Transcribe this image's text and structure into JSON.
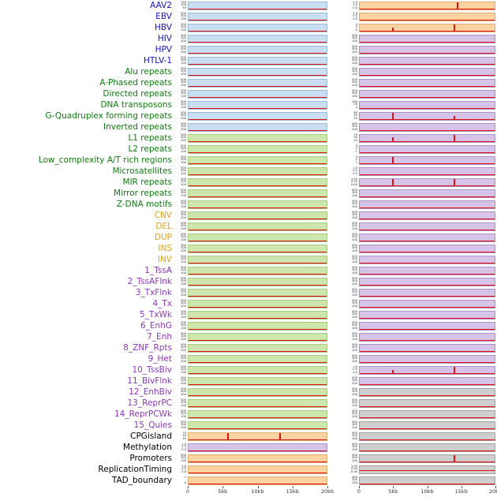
{
  "axis": {
    "ticks": [
      "0",
      "5kb",
      "10kb",
      "15kb",
      "20kb"
    ]
  },
  "colors": {
    "label": {
      "virus": "#1212c4",
      "repeat": "#0e7d0e",
      "sv": "#e5a117",
      "state": "#8f35bf",
      "other": "#000000"
    },
    "track": {
      "blue": {
        "fill": "#c9def0",
        "edge": "#9bbdd8"
      },
      "green": {
        "fill": "#cde6ad",
        "edge": "#a8cc80"
      },
      "orange": {
        "fill": "#fcd2a1",
        "edge": "#e2ae6e"
      },
      "purple": {
        "fill": "#d5c4e8",
        "edge": "#ab92cc"
      },
      "gray": {
        "fill": "#cecece",
        "edge": "#a2a2a2"
      }
    },
    "signal": "#e31010"
  },
  "chart_data": {
    "type": "area",
    "x_axis": {
      "ticks": [
        "0",
        "5kb",
        "10kb",
        "15kb",
        "20kb"
      ],
      "range_kb": [
        0,
        20
      ]
    },
    "panels": [
      "left",
      "right"
    ],
    "notable_peaks": [
      {
        "row": "AAV2",
        "panel": "right",
        "peaks_kb": [
          14.5
        ]
      },
      {
        "row": "HBV",
        "panel": "right",
        "peaks_kb": [
          5,
          14
        ]
      },
      {
        "row": "G-Quadruplex forming repeats",
        "panel": "right",
        "peaks_kb": [
          5,
          14
        ]
      },
      {
        "row": "L1 repeats",
        "panel": "right",
        "peaks_kb": [
          5,
          14
        ]
      },
      {
        "row": "Low_complexity A/T rich regions",
        "panel": "right",
        "peaks_kb": [
          5
        ]
      },
      {
        "row": "MIR repeats",
        "panel": "right",
        "peaks_kb": [
          5,
          14
        ]
      },
      {
        "row": "10_TssBiv",
        "panel": "right",
        "peaks_kb": [
          5,
          14
        ]
      },
      {
        "row": "CPGisland",
        "panel": "left",
        "peaks_kb": [
          6,
          14.7
        ]
      },
      {
        "row": "Promoters",
        "panel": "right",
        "peaks_kb": [
          14
        ]
      }
    ]
  },
  "rows": [
    {
      "label": "AAV2",
      "group": "virus",
      "left": {
        "bg": "blue",
        "ticks": [
          "150",
          "100",
          "50"
        ],
        "spikes": []
      },
      "right": {
        "bg": "orange",
        "ticks": [
          "2.0",
          "1.0",
          "0.0"
        ],
        "spikes": [
          [
            0.72,
            0.92
          ]
        ]
      }
    },
    {
      "label": "EBV",
      "group": "virus",
      "left": {
        "bg": "blue",
        "ticks": [
          "500",
          "300",
          "100"
        ],
        "spikes": []
      },
      "right": {
        "bg": "orange",
        "ticks": [
          "1.0",
          "0.5",
          "0.0"
        ],
        "spikes": []
      }
    },
    {
      "label": "HBV",
      "group": "virus",
      "left": {
        "bg": "blue",
        "ticks": [
          "500",
          "300",
          "100"
        ],
        "spikes": []
      },
      "right": {
        "bg": "orange",
        "ticks": [
          "4",
          "2",
          "0"
        ],
        "spikes": [
          [
            0.25,
            0.5
          ],
          [
            0.7,
            0.95
          ]
        ]
      }
    },
    {
      "label": "HIV",
      "group": "virus",
      "left": {
        "bg": "blue",
        "ticks": [
          "500",
          "300",
          "100"
        ],
        "spikes": []
      },
      "right": {
        "bg": "purple",
        "ticks": [
          "500",
          "300",
          "100"
        ],
        "spikes": []
      }
    },
    {
      "label": "HPV",
      "group": "virus",
      "left": {
        "bg": "blue",
        "ticks": [
          "500",
          "300",
          "100"
        ],
        "spikes": []
      },
      "right": {
        "bg": "purple",
        "ticks": [
          "500",
          "300",
          "100"
        ],
        "spikes": []
      }
    },
    {
      "label": "HTLV-1",
      "group": "virus",
      "left": {
        "bg": "blue",
        "ticks": [
          "500",
          "300",
          "100"
        ],
        "spikes": []
      },
      "right": {
        "bg": "purple",
        "ticks": [
          "500",
          "300",
          "100"
        ],
        "spikes": []
      }
    },
    {
      "label": "Alu repeats",
      "group": "repeat",
      "left": {
        "bg": "blue",
        "ticks": [
          "500",
          "300",
          "100"
        ],
        "spikes": []
      },
      "right": {
        "bg": "purple",
        "ticks": [
          "500",
          "300",
          "100"
        ],
        "spikes": []
      }
    },
    {
      "label": "A-Phased repeats",
      "group": "repeat",
      "left": {
        "bg": "blue",
        "ticks": [
          "500",
          "300",
          "100"
        ],
        "spikes": []
      },
      "right": {
        "bg": "purple",
        "ticks": [
          "500",
          "300",
          "100"
        ],
        "spikes": []
      }
    },
    {
      "label": "Directed repeats",
      "group": "repeat",
      "left": {
        "bg": "blue",
        "ticks": [
          "500",
          "300",
          "100"
        ],
        "spikes": []
      },
      "right": {
        "bg": "purple",
        "ticks": [
          "500",
          "300",
          "100"
        ],
        "spikes": []
      }
    },
    {
      "label": "DNA transposons",
      "group": "repeat",
      "left": {
        "bg": "blue",
        "ticks": [
          "500",
          "300",
          "100"
        ],
        "spikes": []
      },
      "right": {
        "bg": "purple",
        "ticks": [
          "100",
          "50",
          "0"
        ],
        "spikes": []
      }
    },
    {
      "label": "G-Quadruplex forming repeats",
      "group": "repeat",
      "left": {
        "bg": "blue",
        "ticks": [
          "500",
          "300",
          "100"
        ],
        "spikes": []
      },
      "right": {
        "bg": "purple",
        "ticks": [
          "60",
          "40",
          "20"
        ],
        "spikes": [
          [
            0.25,
            0.95
          ],
          [
            0.7,
            0.5
          ]
        ]
      }
    },
    {
      "label": "Inverted repeats",
      "group": "repeat",
      "left": {
        "bg": "blue",
        "ticks": [
          "500",
          "300",
          "100"
        ],
        "spikes": []
      },
      "right": {
        "bg": "purple",
        "ticks": [
          "500",
          "300",
          "100"
        ],
        "spikes": []
      }
    },
    {
      "label": "L1 repeats",
      "group": "repeat",
      "left": {
        "bg": "green",
        "ticks": [
          "500",
          "300",
          "100"
        ],
        "spikes": []
      },
      "right": {
        "bg": "purple",
        "ticks": [
          "75",
          "50",
          "25"
        ],
        "spikes": [
          [
            0.25,
            0.6
          ],
          [
            0.7,
            0.95
          ]
        ]
      }
    },
    {
      "label": "L2 repeats",
      "group": "repeat",
      "left": {
        "bg": "green",
        "ticks": [
          "500",
          "300",
          "100"
        ],
        "spikes": []
      },
      "right": {
        "bg": "purple",
        "ticks": [
          "3",
          "2",
          "1"
        ],
        "spikes": []
      }
    },
    {
      "label": "Low_complexity A/T rich regions",
      "group": "repeat",
      "left": {
        "bg": "green",
        "ticks": [
          "500",
          "300",
          "100"
        ],
        "spikes": []
      },
      "right": {
        "bg": "purple",
        "ticks": [
          "3",
          "2",
          "1"
        ],
        "spikes": [
          [
            0.25,
            0.9
          ]
        ]
      }
    },
    {
      "label": "Microsatellites",
      "group": "repeat",
      "left": {
        "bg": "green",
        "ticks": [
          "500",
          "300",
          "100"
        ],
        "spikes": []
      },
      "right": {
        "bg": "purple",
        "ticks": [
          "1.0",
          "0.5",
          "0.0"
        ],
        "spikes": []
      }
    },
    {
      "label": "MIR repeats",
      "group": "repeat",
      "left": {
        "bg": "green",
        "ticks": [
          "500",
          "300",
          "100"
        ],
        "spikes": []
      },
      "right": {
        "bg": "purple",
        "ticks": [
          "1.00",
          "0.50",
          "0.00"
        ],
        "spikes": [
          [
            0.25,
            0.85
          ],
          [
            0.7,
            0.85
          ]
        ]
      }
    },
    {
      "label": "Mirror repeats",
      "group": "repeat",
      "left": {
        "bg": "green",
        "ticks": [
          "500",
          "300",
          "100"
        ],
        "spikes": []
      },
      "right": {
        "bg": "purple",
        "ticks": [
          "500",
          "300",
          "100"
        ],
        "spikes": []
      }
    },
    {
      "label": "Z-DNA motifs",
      "group": "repeat",
      "left": {
        "bg": "green",
        "ticks": [
          "500",
          "300",
          "100"
        ],
        "spikes": []
      },
      "right": {
        "bg": "purple",
        "ticks": [
          "500",
          "300",
          "100"
        ],
        "spikes": []
      }
    },
    {
      "label": "CNV",
      "group": "sv",
      "left": {
        "bg": "green",
        "ticks": [
          "500",
          "300",
          "100"
        ],
        "spikes": []
      },
      "right": {
        "bg": "purple",
        "ticks": [
          "500",
          "300",
          "100"
        ],
        "spikes": []
      }
    },
    {
      "label": "DEL",
      "group": "sv",
      "left": {
        "bg": "green",
        "ticks": [
          "500",
          "300",
          "100"
        ],
        "spikes": []
      },
      "right": {
        "bg": "purple",
        "ticks": [
          "500",
          "300",
          "100"
        ],
        "spikes": []
      }
    },
    {
      "label": "DUP",
      "group": "sv",
      "left": {
        "bg": "green",
        "ticks": [
          "500",
          "300",
          "100"
        ],
        "spikes": []
      },
      "right": {
        "bg": "purple",
        "ticks": [
          "500",
          "300",
          "100"
        ],
        "spikes": []
      }
    },
    {
      "label": "INS",
      "group": "sv",
      "left": {
        "bg": "green",
        "ticks": [
          "500",
          "300",
          "100"
        ],
        "spikes": []
      },
      "right": {
        "bg": "purple",
        "ticks": [
          "500",
          "300",
          "100"
        ],
        "spikes": []
      }
    },
    {
      "label": "INV",
      "group": "sv",
      "left": {
        "bg": "green",
        "ticks": [
          "500",
          "300",
          "100"
        ],
        "spikes": []
      },
      "right": {
        "bg": "purple",
        "ticks": [
          "500",
          "300",
          "100"
        ],
        "spikes": []
      }
    },
    {
      "label": "1_TssA",
      "group": "state",
      "left": {
        "bg": "green",
        "ticks": [
          "500",
          "300",
          "100"
        ],
        "spikes": []
      },
      "right": {
        "bg": "purple",
        "ticks": [
          "500",
          "300",
          "100"
        ],
        "spikes": []
      }
    },
    {
      "label": "2_TssAFlnk",
      "group": "state",
      "left": {
        "bg": "green",
        "ticks": [
          "500",
          "300",
          "100"
        ],
        "spikes": []
      },
      "right": {
        "bg": "purple",
        "ticks": [
          "500",
          "300",
          "100"
        ],
        "spikes": []
      }
    },
    {
      "label": "3_TxFlnk",
      "group": "state",
      "left": {
        "bg": "green",
        "ticks": [
          "500",
          "300",
          "100"
        ],
        "spikes": []
      },
      "right": {
        "bg": "purple",
        "ticks": [
          "500",
          "300",
          "100"
        ],
        "spikes": []
      }
    },
    {
      "label": "4_Tx",
      "group": "state",
      "left": {
        "bg": "green",
        "ticks": [
          "500",
          "300",
          "100"
        ],
        "spikes": []
      },
      "right": {
        "bg": "purple",
        "ticks": [
          "500",
          "300",
          "100"
        ],
        "spikes": []
      }
    },
    {
      "label": "5_TxWk",
      "group": "state",
      "left": {
        "bg": "green",
        "ticks": [
          "500",
          "300",
          "100"
        ],
        "spikes": []
      },
      "right": {
        "bg": "purple",
        "ticks": [
          "500",
          "300",
          "100"
        ],
        "spikes": []
      }
    },
    {
      "label": "6_EnhG",
      "group": "state",
      "left": {
        "bg": "green",
        "ticks": [
          "500",
          "300",
          "100"
        ],
        "spikes": []
      },
      "right": {
        "bg": "purple",
        "ticks": [
          "500",
          "300",
          "100"
        ],
        "spikes": []
      }
    },
    {
      "label": "7_Enh",
      "group": "state",
      "left": {
        "bg": "green",
        "ticks": [
          "500",
          "300",
          "100"
        ],
        "spikes": []
      },
      "right": {
        "bg": "purple",
        "ticks": [
          "500",
          "300",
          "100"
        ],
        "spikes": []
      }
    },
    {
      "label": "8_ZNF_Rpts",
      "group": "state",
      "left": {
        "bg": "green",
        "ticks": [
          "500",
          "300",
          "100"
        ],
        "spikes": []
      },
      "right": {
        "bg": "purple",
        "ticks": [
          "500",
          "300",
          "100"
        ],
        "spikes": []
      }
    },
    {
      "label": "9_Het",
      "group": "state",
      "left": {
        "bg": "green",
        "ticks": [
          "500",
          "300",
          "100"
        ],
        "spikes": []
      },
      "right": {
        "bg": "purple",
        "ticks": [
          "500",
          "300",
          "100"
        ],
        "spikes": []
      }
    },
    {
      "label": "10_TssBiv",
      "group": "state",
      "left": {
        "bg": "green",
        "ticks": [
          "500",
          "300",
          "100"
        ],
        "spikes": []
      },
      "right": {
        "bg": "purple",
        "ticks": [
          "1.0",
          "0.5",
          "0.0"
        ],
        "spikes": [
          [
            0.25,
            0.5
          ],
          [
            0.7,
            0.95
          ]
        ]
      }
    },
    {
      "label": "11_BivFlnk",
      "group": "state",
      "left": {
        "bg": "green",
        "ticks": [
          "500",
          "300",
          "100"
        ],
        "spikes": []
      },
      "right": {
        "bg": "purple",
        "ticks": [
          "500",
          "300",
          "100"
        ],
        "spikes": []
      }
    },
    {
      "label": "12_EnhBiv",
      "group": "state",
      "left": {
        "bg": "green",
        "ticks": [
          "500",
          "300",
          "100"
        ],
        "spikes": []
      },
      "right": {
        "bg": "gray",
        "ticks": [
          "500",
          "300",
          "100"
        ],
        "spikes": []
      }
    },
    {
      "label": "13_ReprPC",
      "group": "state",
      "left": {
        "bg": "green",
        "ticks": [
          "500",
          "300",
          "100"
        ],
        "spikes": []
      },
      "right": {
        "bg": "gray",
        "ticks": [
          "500",
          "300",
          "100"
        ],
        "spikes": []
      }
    },
    {
      "label": "14_ReprPCWk",
      "group": "state",
      "left": {
        "bg": "green",
        "ticks": [
          "500",
          "300",
          "100"
        ],
        "spikes": []
      },
      "right": {
        "bg": "gray",
        "ticks": [
          "500",
          "300",
          "100"
        ],
        "spikes": []
      }
    },
    {
      "label": "15_Quies",
      "group": "state",
      "left": {
        "bg": "green",
        "ticks": [
          "500",
          "300",
          "100"
        ],
        "spikes": []
      },
      "right": {
        "bg": "gray",
        "ticks": [
          "500",
          "300",
          "100"
        ],
        "spikes": []
      }
    },
    {
      "label": "CPGisland",
      "group": "other",
      "left": {
        "bg": "orange",
        "ticks": [
          "75",
          "50",
          "25"
        ],
        "spikes": [
          [
            0.29,
            0.95
          ],
          [
            0.66,
            0.85
          ]
        ]
      },
      "right": {
        "bg": "gray",
        "ticks": [
          "500",
          "300",
          "100"
        ],
        "spikes": []
      }
    },
    {
      "label": "Methylation",
      "group": "other",
      "left": {
        "bg": "purple",
        "ticks": [
          "1.0",
          "0.5",
          "0.0"
        ],
        "spikes": []
      },
      "right": {
        "bg": "gray",
        "ticks": [
          "500",
          "300",
          "100"
        ],
        "spikes": []
      }
    },
    {
      "label": "Promoters",
      "group": "other",
      "left": {
        "bg": "orange",
        "ticks": [
          "500",
          "300",
          "100"
        ],
        "spikes": []
      },
      "right": {
        "bg": "gray",
        "ticks": [
          "500",
          "300",
          "100"
        ],
        "spikes": [
          [
            0.7,
            0.9
          ]
        ]
      }
    },
    {
      "label": "ReplicationTiming",
      "group": "other",
      "left": {
        "bg": "orange",
        "ticks": [
          "1.0",
          "0.5",
          "0.0"
        ],
        "spikes": []
      },
      "right": {
        "bg": "gray",
        "ticks": [
          "1.00",
          "0.50",
          "0.00"
        ],
        "spikes": [],
        "line": 0.35
      }
    },
    {
      "label": "TAD_boundary",
      "group": "other",
      "left": {
        "bg": "orange",
        "ticks": [
          "1",
          "0"
        ],
        "spikes": []
      },
      "right": {
        "bg": "gray",
        "ticks": [
          "500",
          "300",
          "100"
        ],
        "spikes": []
      }
    }
  ]
}
